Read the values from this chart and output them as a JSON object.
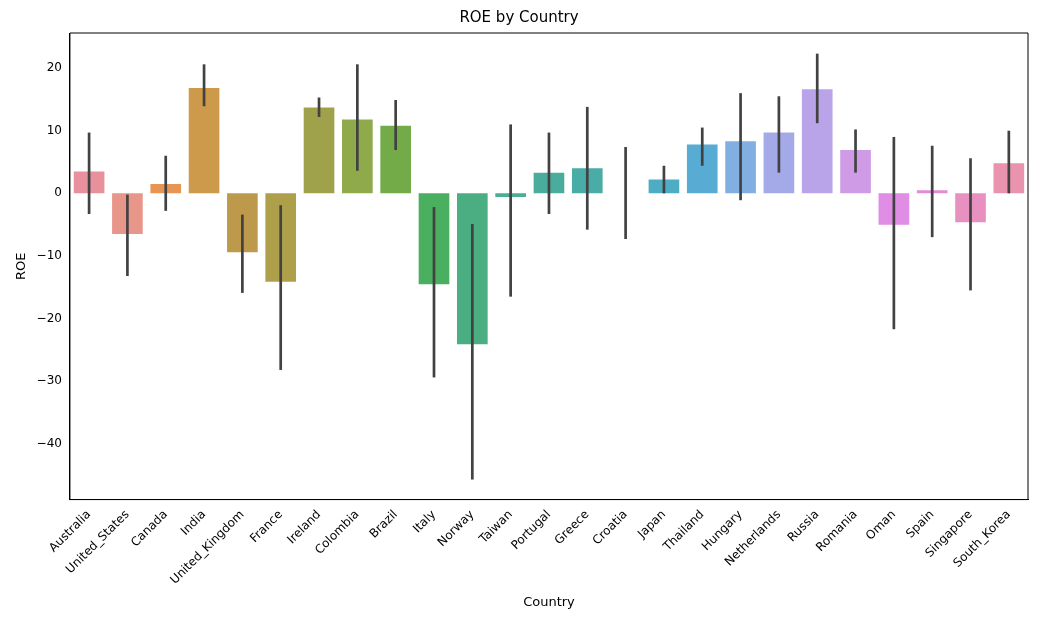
{
  "chart_data": {
    "type": "bar",
    "title": "ROE by Country",
    "xlabel": "Country",
    "ylabel": "ROE",
    "categories": [
      "Australia",
      "United_States",
      "Canada",
      "India",
      "United_Kingdom",
      "France",
      "Ireland",
      "Colombia",
      "Brazil",
      "Italy",
      "Norway",
      "Taiwan",
      "Portugal",
      "Greece",
      "Croatia",
      "Japan",
      "Thailand",
      "Hungary",
      "Netherlands",
      "Russia",
      "Romania",
      "Oman",
      "Spain",
      "Singapore",
      "South_Korea"
    ],
    "values": [
      3.5,
      -6.5,
      1.5,
      16.8,
      -9.4,
      -14.1,
      13.7,
      11.8,
      10.8,
      -14.5,
      -24.1,
      -0.6,
      3.3,
      4.0,
      0,
      2.2,
      7.8,
      8.3,
      9.7,
      16.6,
      6.9,
      -5.0,
      0.5,
      -4.6,
      4.8
    ],
    "errors": [
      [
        -3.3,
        9.7
      ],
      [
        -13.2,
        -0.2
      ],
      [
        -2.8,
        6.0
      ],
      [
        13.9,
        20.6
      ],
      [
        -15.9,
        -3.4
      ],
      [
        -28.2,
        -1.9
      ],
      [
        12.2,
        15.3
      ],
      [
        3.6,
        20.6
      ],
      [
        6.9,
        14.9
      ],
      [
        -29.4,
        -2.2
      ],
      [
        -45.7,
        -4.9
      ],
      [
        -16.5,
        11.0
      ],
      [
        -3.3,
        9.7
      ],
      [
        -5.8,
        13.8
      ],
      [
        -7.3,
        7.4
      ],
      [
        0,
        4.4
      ],
      [
        4.4,
        10.5
      ],
      [
        -1.1,
        16.0
      ],
      [
        3.3,
        15.5
      ],
      [
        11.2,
        22.3
      ],
      [
        3.3,
        10.2
      ],
      [
        -21.7,
        9.0
      ],
      [
        -7.0,
        7.6
      ],
      [
        -15.5,
        5.6
      ],
      [
        0,
        10.0
      ]
    ],
    "colors": [
      "#e8909c",
      "#e8958a",
      "#e89452",
      "#cd9a4c",
      "#bd9a4b",
      "#aea04b",
      "#9fa24a",
      "#8faa4b",
      "#74ab49",
      "#4aaf5f",
      "#4bad82",
      "#4aad94",
      "#4aac9d",
      "#4aaca6",
      "#4caeb2",
      "#4eacc4",
      "#58acd4",
      "#82afe2",
      "#a4aae8",
      "#b9a3e9",
      "#d09be6",
      "#e08de6",
      "#e58ad7",
      "#e891c1",
      "#e993ae"
    ],
    "ylim": [
      -48.9,
      25.6
    ],
    "yticks": [
      -40,
      -30,
      -20,
      -10,
      0,
      10,
      20
    ],
    "grid": false,
    "legend": false
  }
}
